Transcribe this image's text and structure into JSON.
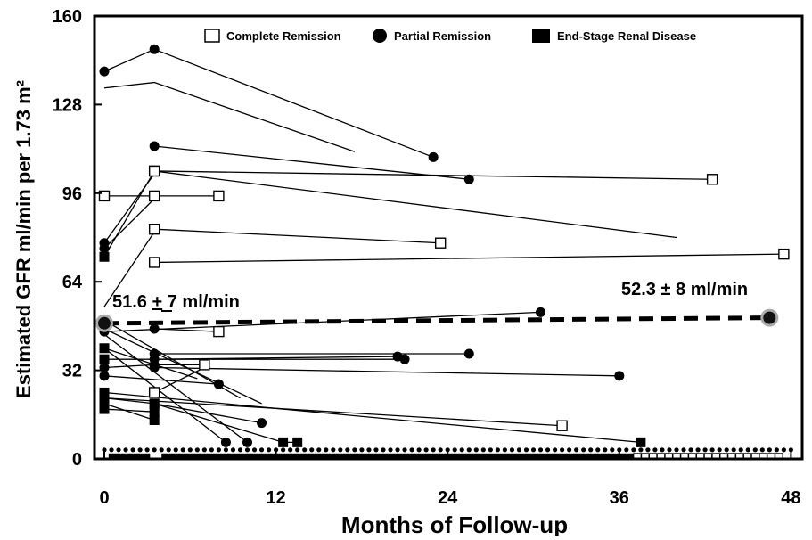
{
  "chart_data": {
    "type": "line",
    "title": "",
    "xlabel": "Months of Follow-up",
    "ylabel": "Estimated GFR ml/min per 1.73 m²",
    "xlim": [
      -1,
      48
    ],
    "ylim": [
      0,
      160
    ],
    "xticks": [
      "0",
      "12",
      "24",
      "36",
      "48"
    ],
    "yticks": [
      "0",
      "32",
      "64",
      "96",
      "128",
      "160"
    ],
    "grid": false,
    "legend_position": "top",
    "legend": [
      {
        "label": "Complete Remission",
        "marker": "open-square"
      },
      {
        "label": "Partial Remission",
        "marker": "filled-circle"
      },
      {
        "label": "End-Stage Renal Disease",
        "marker": "filled-square"
      }
    ],
    "annotations": [
      {
        "text": "51.6 ",
        "underlined": "+",
        "rest": " 7 ml/min",
        "x": 0,
        "y": 49
      },
      {
        "text": "52.3 ± 8 ml/min",
        "x": 46.5,
        "y": 51
      }
    ],
    "mean_line": {
      "x": [
        0,
        46.5
      ],
      "y": [
        49,
        51
      ]
    },
    "series": [
      {
        "x": [
          0,
          3.5,
          23
        ],
        "y": [
          140,
          148,
          109
        ],
        "markers": [
          "circle",
          "circle",
          "circle"
        ]
      },
      {
        "x": [
          0,
          3.5,
          17.5
        ],
        "y": [
          134,
          136,
          111
        ],
        "markers": [
          "none",
          "none",
          "none"
        ]
      },
      {
        "x": [
          3.5,
          25.5
        ],
        "y": [
          113,
          101
        ],
        "markers": [
          "circle",
          "circle"
        ]
      },
      {
        "x": [
          3.5,
          42.5
        ],
        "y": [
          104,
          101
        ],
        "markers": [
          "open",
          "open"
        ]
      },
      {
        "x": [
          3.5,
          40
        ],
        "y": [
          104,
          80
        ],
        "markers": [
          "none",
          "none"
        ]
      },
      {
        "x": [
          0,
          3.5,
          8
        ],
        "y": [
          95,
          95,
          95
        ],
        "markers": [
          "open",
          "open",
          "open"
        ]
      },
      {
        "x": [
          0,
          3.5
        ],
        "y": [
          73,
          104
        ],
        "markers": [
          "filled",
          "open"
        ]
      },
      {
        "x": [
          3.5,
          23.5
        ],
        "y": [
          83,
          78
        ],
        "markers": [
          "open",
          "open"
        ]
      },
      {
        "x": [
          3.5,
          47.5
        ],
        "y": [
          71,
          74
        ],
        "markers": [
          "open",
          "open"
        ]
      },
      {
        "x": [
          0,
          3.5
        ],
        "y": [
          78,
          103
        ],
        "markers": [
          "circle",
          "none"
        ]
      },
      {
        "x": [
          0,
          3.5
        ],
        "y": [
          76,
          94
        ],
        "markers": [
          "circle",
          "none"
        ]
      },
      {
        "x": [
          0,
          3.5
        ],
        "y": [
          55,
          82
        ],
        "markers": [
          "none",
          "none"
        ]
      },
      {
        "x": [
          0,
          30.5
        ],
        "y": [
          46,
          53
        ],
        "markers": [
          "circle",
          "circle"
        ]
      },
      {
        "x": [
          3.5,
          8
        ],
        "y": [
          47,
          46
        ],
        "markers": [
          "circle",
          "open"
        ]
      },
      {
        "x": [
          3.5,
          20.5
        ],
        "y": [
          36,
          37
        ],
        "markers": [
          "circle",
          "circle"
        ]
      },
      {
        "x": [
          0,
          21
        ],
        "y": [
          36,
          36
        ],
        "markers": [
          "filled",
          "circle"
        ]
      },
      {
        "x": [
          3.5,
          25.5
        ],
        "y": [
          38,
          38
        ],
        "markers": [
          "circle",
          "circle"
        ]
      },
      {
        "x": [
          0,
          3.5,
          7
        ],
        "y": [
          33,
          34,
          34
        ],
        "markers": [
          "circle",
          "circle",
          "open"
        ]
      },
      {
        "x": [
          3.5,
          36
        ],
        "y": [
          33,
          30
        ],
        "markers": [
          "circle",
          "circle"
        ]
      },
      {
        "x": [
          0,
          8
        ],
        "y": [
          30,
          27
        ],
        "markers": [
          "circle",
          "circle"
        ]
      },
      {
        "x": [
          3.5,
          7
        ],
        "y": [
          24,
          33
        ],
        "markers": [
          "open",
          "none"
        ]
      },
      {
        "x": [
          0,
          32
        ],
        "y": [
          22,
          12
        ],
        "markers": [
          "filled",
          "open"
        ]
      },
      {
        "x": [
          0,
          37.5
        ],
        "y": [
          24,
          6
        ],
        "markers": [
          "filled",
          "filled"
        ]
      },
      {
        "x": [
          3.5,
          12.5,
          13.5
        ],
        "y": [
          20,
          6,
          6
        ],
        "markers": [
          "filled",
          "filled",
          "filled"
        ]
      },
      {
        "x": [
          0,
          3.5,
          11
        ],
        "y": [
          22,
          20,
          13
        ],
        "markers": [
          "filled",
          "filled",
          "circle"
        ]
      },
      {
        "x": [
          0,
          3.5
        ],
        "y": [
          18,
          17
        ],
        "markers": [
          "filled",
          "filled"
        ]
      },
      {
        "x": [
          0,
          3.5
        ],
        "y": [
          20,
          14
        ],
        "markers": [
          "filled",
          "filled"
        ]
      },
      {
        "x": [
          0,
          8.5
        ],
        "y": [
          40,
          6
        ],
        "markers": [
          "filled",
          "circle"
        ]
      },
      {
        "x": [
          0,
          10
        ],
        "y": [
          45,
          6
        ],
        "markers": [
          "none",
          "circle"
        ]
      },
      {
        "x": [
          0,
          9.5
        ],
        "y": [
          50,
          22
        ],
        "markers": [
          "none",
          "none"
        ]
      },
      {
        "x": [
          0,
          11
        ],
        "y": [
          47,
          20
        ],
        "markers": [
          "none",
          "none"
        ]
      },
      {
        "x": [
          0,
          6.5
        ],
        "y": [
          40,
          29
        ],
        "markers": [
          "none",
          "none"
        ]
      }
    ],
    "baseline_row": {
      "y": 2,
      "circle_range": [
        0,
        48
      ],
      "filled_segments": [
        [
          0.3,
          3.2
        ],
        [
          4,
          37
        ]
      ],
      "open_range": [
        37,
        47
      ]
    }
  }
}
